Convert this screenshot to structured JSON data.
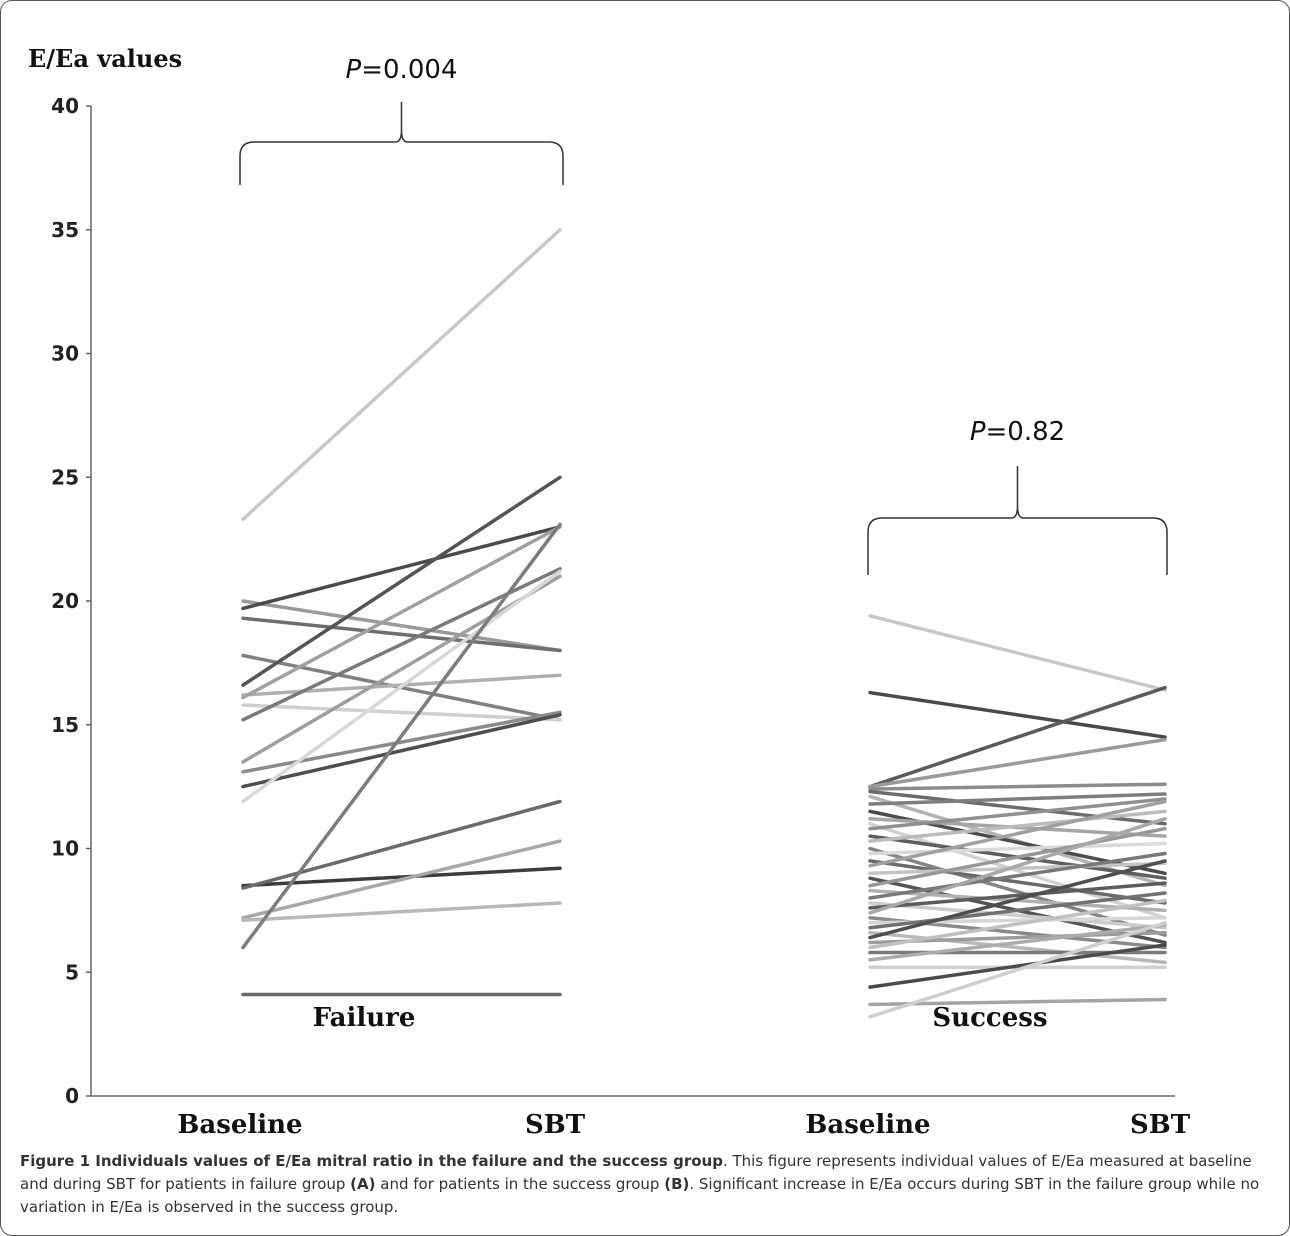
{
  "chart_data": {
    "type": "line",
    "ylabel": "E/Ea values",
    "ylim": [
      0,
      40
    ],
    "yticks": [
      0,
      5,
      10,
      15,
      20,
      25,
      30,
      35,
      40
    ],
    "ytick_labels": [
      "0",
      "5",
      "10",
      "15",
      "20",
      "25",
      "30",
      "35",
      "40"
    ],
    "x_labels": [
      "Baseline",
      "SBT",
      "Baseline",
      "SBT"
    ],
    "grid": false,
    "legend": "none",
    "groups": [
      {
        "label": "Failure",
        "p_prefix": "P",
        "p_suffix": "=0.004",
        "pairs": [
          [
            23.3,
            35.0,
            "#c8c8c8"
          ],
          [
            20.0,
            18.0,
            "#9a9a9a"
          ],
          [
            19.7,
            23.0,
            "#4a4a4a"
          ],
          [
            19.3,
            18.0,
            "#6e6e6e"
          ],
          [
            17.8,
            15.2,
            "#808080"
          ],
          [
            16.6,
            25.0,
            "#555555"
          ],
          [
            16.2,
            17.0,
            "#b0b0b0"
          ],
          [
            16.1,
            23.0,
            "#a0a0a0"
          ],
          [
            15.8,
            15.2,
            "#d0d0d0"
          ],
          [
            15.2,
            21.3,
            "#7a7a7a"
          ],
          [
            13.5,
            21.0,
            "#9e9e9e"
          ],
          [
            13.1,
            15.5,
            "#8a8a8a"
          ],
          [
            12.5,
            15.4,
            "#4e4e4e"
          ],
          [
            11.9,
            21.2,
            "#d8d8d8"
          ],
          [
            8.5,
            9.2,
            "#3c3c3c"
          ],
          [
            8.4,
            11.9,
            "#6a6a6a"
          ],
          [
            7.2,
            10.3,
            "#a8a8a8"
          ],
          [
            7.1,
            7.8,
            "#b8b8b8"
          ],
          [
            6.0,
            23.1,
            "#7c7c7c"
          ],
          [
            4.1,
            4.1,
            "#6a6a6a"
          ]
        ]
      },
      {
        "label": "Success",
        "p_prefix": "P",
        "p_suffix": "=0.82",
        "pairs": [
          [
            19.4,
            16.4,
            "#c8c8c8"
          ],
          [
            16.3,
            14.5,
            "#4a4a4a"
          ],
          [
            12.5,
            16.5,
            "#5a5a5a"
          ],
          [
            12.5,
            14.4,
            "#9a9a9a"
          ],
          [
            12.4,
            12.6,
            "#8c8c8c"
          ],
          [
            12.3,
            11.0,
            "#6c6c6c"
          ],
          [
            12.1,
            8.5,
            "#b4b4b4"
          ],
          [
            11.8,
            12.2,
            "#7e7e7e"
          ],
          [
            11.5,
            9.0,
            "#4c4c4c"
          ],
          [
            11.2,
            10.5,
            "#a6a6a6"
          ],
          [
            11.0,
            7.2,
            "#d2d2d2"
          ],
          [
            10.8,
            12.0,
            "#909090"
          ],
          [
            10.5,
            8.8,
            "#5e5e5e"
          ],
          [
            10.3,
            11.5,
            "#bcbcbc"
          ],
          [
            10.0,
            6.5,
            "#848484"
          ],
          [
            9.8,
            10.2,
            "#dadada"
          ],
          [
            9.5,
            7.8,
            "#6a6a6a"
          ],
          [
            9.3,
            11.9,
            "#a0a0a0"
          ],
          [
            9.0,
            9.4,
            "#c4c4c4"
          ],
          [
            8.8,
            6.2,
            "#545454"
          ],
          [
            8.5,
            10.8,
            "#989898"
          ],
          [
            8.3,
            7.5,
            "#b0b0b0"
          ],
          [
            8.0,
            9.8,
            "#787878"
          ],
          [
            7.8,
            6.8,
            "#cccccc"
          ],
          [
            7.6,
            8.6,
            "#5c5c5c"
          ],
          [
            7.4,
            11.2,
            "#a8a8a8"
          ],
          [
            7.2,
            6.0,
            "#8a8a8a"
          ],
          [
            7.0,
            7.2,
            "#d6d6d6"
          ],
          [
            6.8,
            8.2,
            "#707070"
          ],
          [
            6.6,
            5.4,
            "#b8b8b8"
          ],
          [
            6.4,
            9.5,
            "#4e4e4e"
          ],
          [
            6.2,
            6.6,
            "#9c9c9c"
          ],
          [
            6.0,
            7.9,
            "#c0c0c0"
          ],
          [
            5.8,
            5.8,
            "#7a7a7a"
          ],
          [
            5.5,
            6.9,
            "#acacac"
          ],
          [
            5.2,
            5.2,
            "#d0d0d0"
          ],
          [
            4.4,
            6.1,
            "#4a4a4a"
          ],
          [
            3.7,
            3.9,
            "#a4a4a4"
          ],
          [
            3.2,
            7.0,
            "#cfcfcf"
          ]
        ]
      }
    ]
  },
  "caption": {
    "lead": "Figure 1 Individuals values of E/Ea mitral ratio in the failure and the success group",
    "seg1": ". This figure represents individual values of E/Ea measured at baseline and during SBT for patients in failure group ",
    "bold_a": "(A)",
    "seg2": " and for patients in the success group ",
    "bold_b": "(B)",
    "seg3": ". Significant increase in E/Ea occurs during SBT in the failure group while no variation in E/Ea is observed in the success group."
  }
}
